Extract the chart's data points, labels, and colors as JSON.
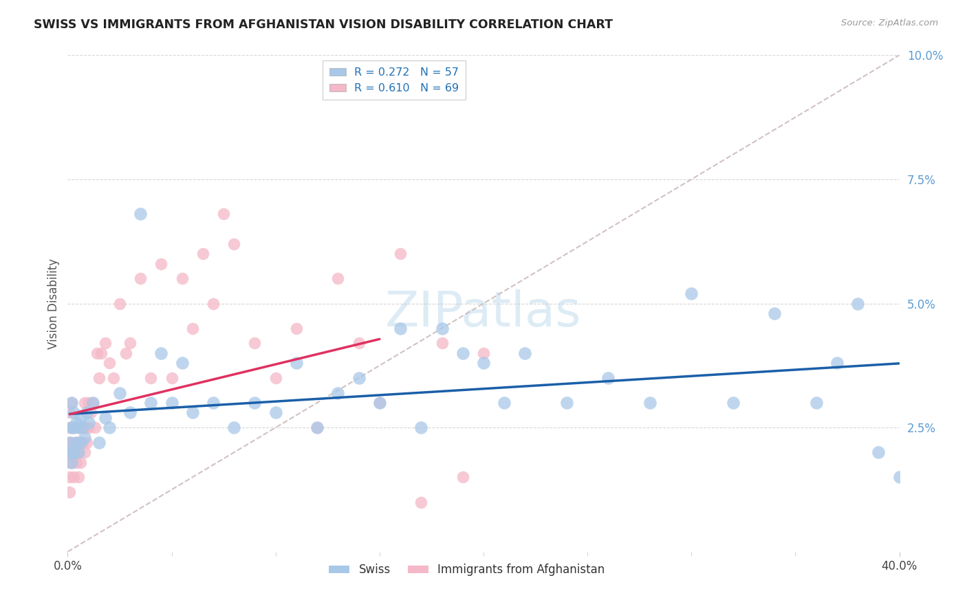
{
  "title": "SWISS VS IMMIGRANTS FROM AFGHANISTAN VISION DISABILITY CORRELATION CHART",
  "source": "Source: ZipAtlas.com",
  "ylabel": "Vision Disability",
  "xlim": [
    0.0,
    0.4
  ],
  "ylim": [
    0.0,
    0.1
  ],
  "blue_color": "#a8c8e8",
  "pink_color": "#f4b8c8",
  "blue_line_color": "#1a5fa8",
  "pink_line_color": "#e03060",
  "diag_color": "#ccbbbb",
  "grid_color": "#cccccc",
  "R_swiss": 0.272,
  "N_swiss": 57,
  "R_afghan": 0.61,
  "N_afghan": 69,
  "swiss_x": [
    0.001,
    0.001,
    0.002,
    0.002,
    0.002,
    0.003,
    0.003,
    0.003,
    0.004,
    0.004,
    0.005,
    0.005,
    0.006,
    0.006,
    0.007,
    0.008,
    0.009,
    0.01,
    0.012,
    0.015,
    0.018,
    0.02,
    0.025,
    0.03,
    0.035,
    0.04,
    0.045,
    0.05,
    0.055,
    0.06,
    0.07,
    0.08,
    0.09,
    0.1,
    0.11,
    0.12,
    0.13,
    0.14,
    0.15,
    0.16,
    0.17,
    0.18,
    0.19,
    0.2,
    0.21,
    0.22,
    0.24,
    0.26,
    0.28,
    0.3,
    0.32,
    0.34,
    0.36,
    0.37,
    0.38,
    0.39,
    0.4
  ],
  "swiss_y": [
    0.02,
    0.022,
    0.018,
    0.025,
    0.03,
    0.02,
    0.025,
    0.028,
    0.022,
    0.026,
    0.025,
    0.02,
    0.022,
    0.027,
    0.025,
    0.023,
    0.028,
    0.026,
    0.03,
    0.022,
    0.027,
    0.025,
    0.032,
    0.028,
    0.068,
    0.03,
    0.04,
    0.03,
    0.038,
    0.028,
    0.03,
    0.025,
    0.03,
    0.028,
    0.038,
    0.025,
    0.032,
    0.035,
    0.03,
    0.045,
    0.025,
    0.045,
    0.04,
    0.038,
    0.03,
    0.04,
    0.03,
    0.035,
    0.03,
    0.052,
    0.03,
    0.048,
    0.03,
    0.038,
    0.05,
    0.02,
    0.015
  ],
  "afghan_x": [
    0.001,
    0.001,
    0.001,
    0.001,
    0.001,
    0.001,
    0.001,
    0.002,
    0.002,
    0.002,
    0.002,
    0.002,
    0.003,
    0.003,
    0.003,
    0.003,
    0.004,
    0.004,
    0.004,
    0.005,
    0.005,
    0.005,
    0.005,
    0.006,
    0.006,
    0.006,
    0.007,
    0.007,
    0.008,
    0.008,
    0.008,
    0.009,
    0.009,
    0.01,
    0.01,
    0.011,
    0.012,
    0.013,
    0.014,
    0.015,
    0.016,
    0.018,
    0.02,
    0.022,
    0.025,
    0.028,
    0.03,
    0.035,
    0.04,
    0.045,
    0.05,
    0.055,
    0.06,
    0.065,
    0.07,
    0.075,
    0.08,
    0.09,
    0.1,
    0.11,
    0.12,
    0.13,
    0.14,
    0.15,
    0.16,
    0.17,
    0.18,
    0.19,
    0.2
  ],
  "afghan_y": [
    0.018,
    0.02,
    0.022,
    0.025,
    0.015,
    0.028,
    0.012,
    0.02,
    0.022,
    0.025,
    0.018,
    0.03,
    0.02,
    0.022,
    0.025,
    0.015,
    0.02,
    0.022,
    0.018,
    0.022,
    0.025,
    0.02,
    0.015,
    0.022,
    0.025,
    0.018,
    0.025,
    0.022,
    0.025,
    0.02,
    0.03,
    0.022,
    0.025,
    0.025,
    0.03,
    0.028,
    0.03,
    0.025,
    0.04,
    0.035,
    0.04,
    0.042,
    0.038,
    0.035,
    0.05,
    0.04,
    0.042,
    0.055,
    0.035,
    0.058,
    0.035,
    0.055,
    0.045,
    0.06,
    0.05,
    0.068,
    0.062,
    0.042,
    0.035,
    0.045,
    0.025,
    0.055,
    0.042,
    0.03,
    0.06,
    0.01,
    0.042,
    0.015,
    0.04
  ],
  "watermark_text": "ZIPatlas",
  "background_color": "#ffffff"
}
